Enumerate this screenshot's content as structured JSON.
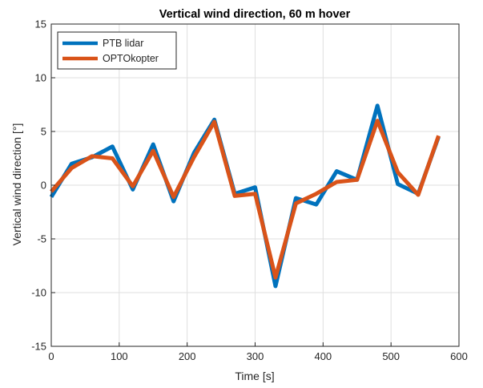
{
  "chart_data": {
    "type": "line",
    "title": "Vertical wind direction, 60 m hover",
    "xlabel": "Time [s]",
    "ylabel": "Vertical wind direction [°]",
    "xlim": [
      0,
      600
    ],
    "ylim": [
      -15,
      15
    ],
    "xticks": [
      0,
      100,
      200,
      300,
      400,
      500,
      600
    ],
    "yticks": [
      -15,
      -10,
      -5,
      0,
      5,
      10,
      15
    ],
    "grid": true,
    "legend_position": "top-left",
    "x": [
      0,
      30,
      60,
      90,
      120,
      150,
      180,
      210,
      240,
      270,
      300,
      330,
      360,
      390,
      420,
      450,
      480,
      510,
      540,
      570
    ],
    "series": [
      {
        "name": "PTB lidar",
        "color": "#0072BD",
        "values": [
          -1.1,
          2.0,
          2.6,
          3.6,
          -0.4,
          3.8,
          -1.5,
          3.0,
          6.1,
          -0.8,
          -0.2,
          -9.4,
          -1.2,
          -1.8,
          1.3,
          0.5,
          7.4,
          0.1,
          -0.8,
          4.5
        ]
      },
      {
        "name": "OPTOkopter",
        "color": "#D95319",
        "values": [
          -0.6,
          1.6,
          2.7,
          2.5,
          -0.1,
          3.2,
          -1.1,
          2.6,
          5.9,
          -1.0,
          -0.8,
          -8.6,
          -1.7,
          -0.8,
          0.3,
          0.5,
          6.0,
          1.2,
          -0.9,
          4.6
        ]
      }
    ]
  }
}
